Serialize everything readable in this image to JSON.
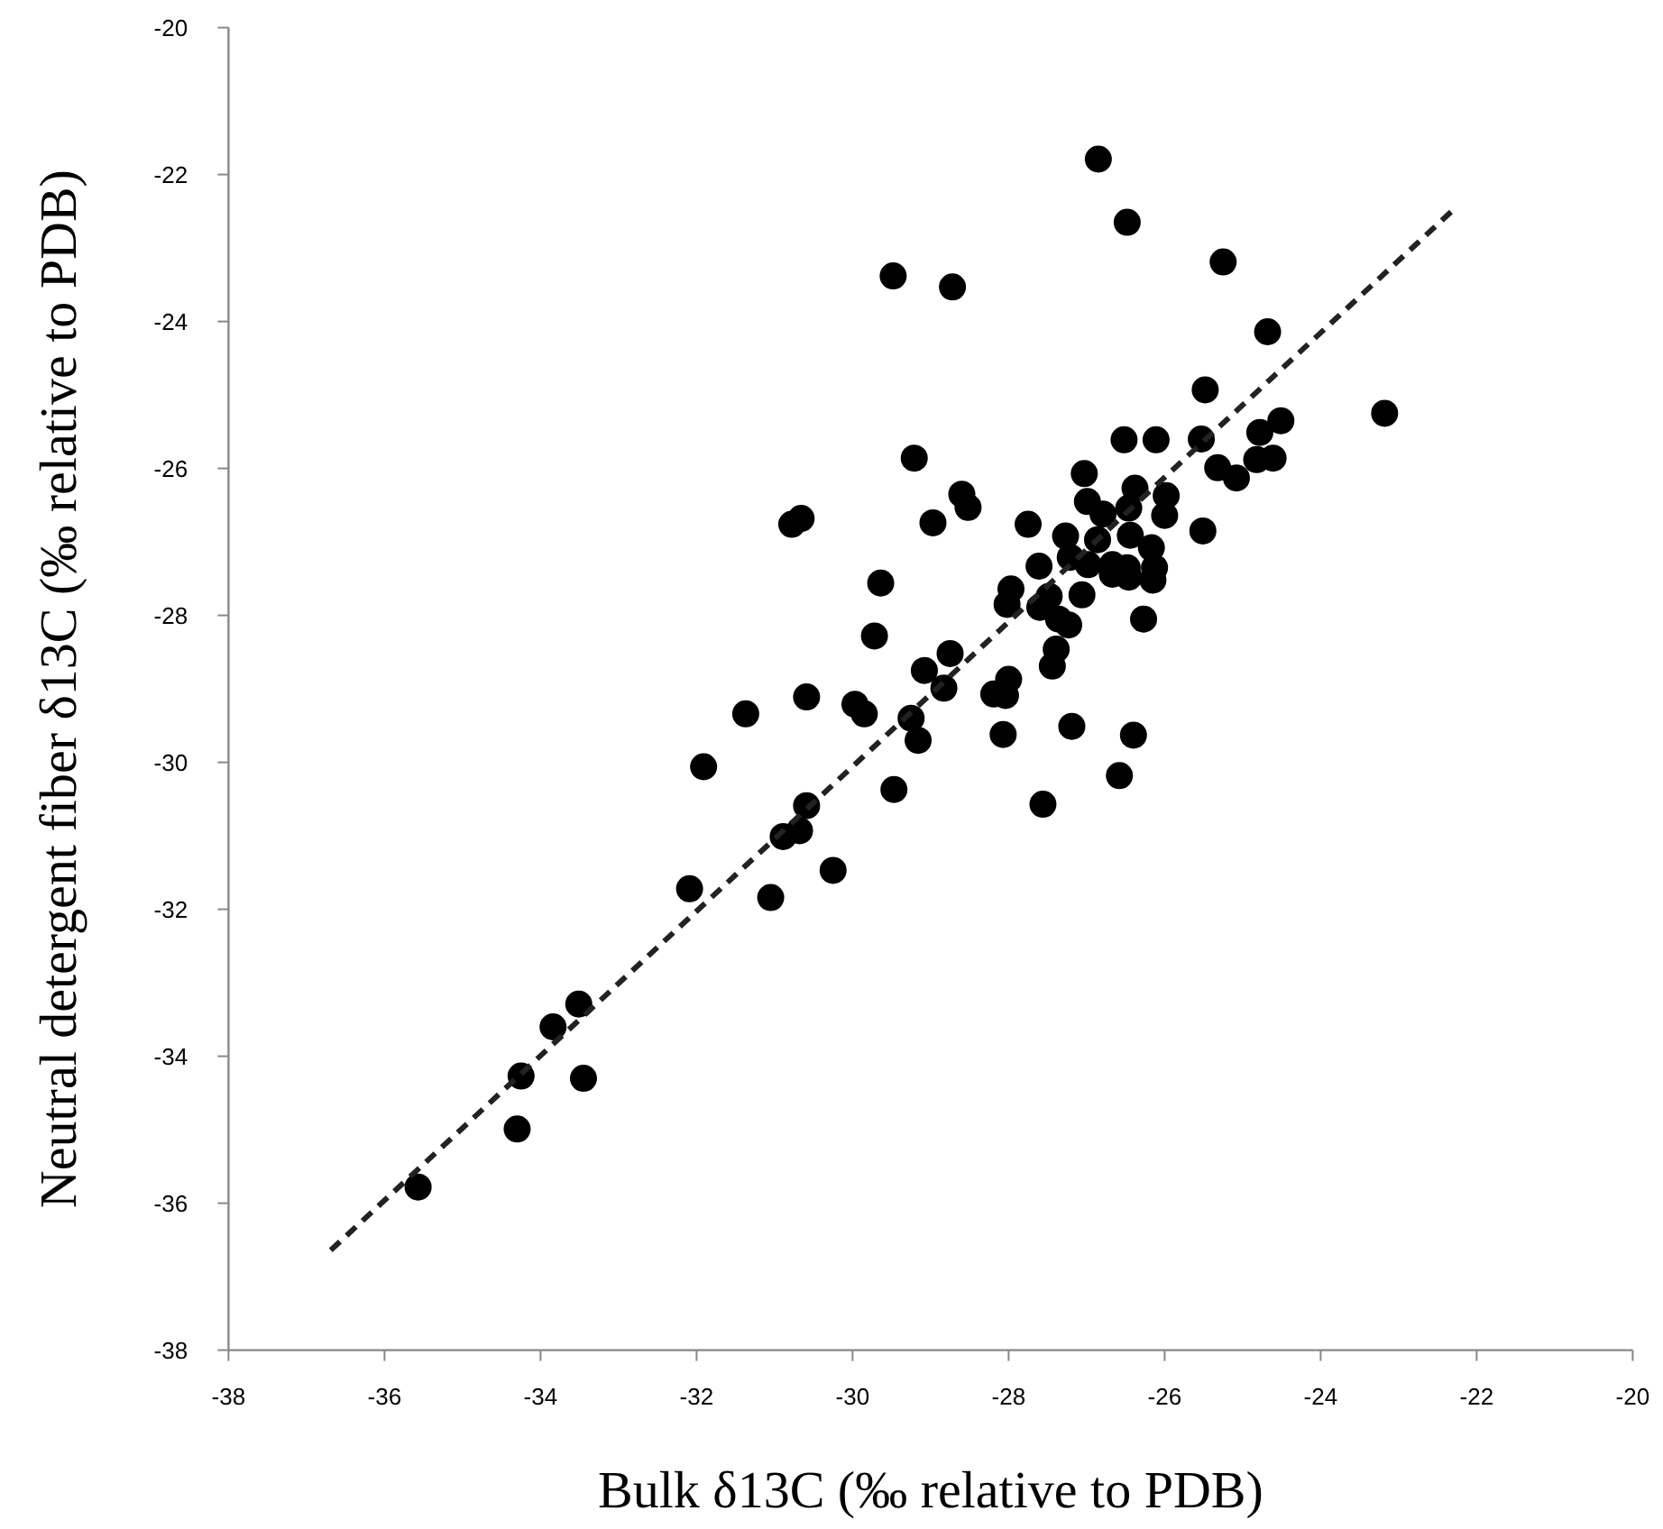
{
  "chart_data": {
    "type": "scatter",
    "xlabel": "Bulk δ13C (‰ relative to PDB)",
    "ylabel": "Neutral detergent fiber δ13C (‰ relative to PDB)",
    "xlim": [
      -38,
      -20
    ],
    "ylim": [
      -38,
      -20
    ],
    "xticks": [
      -38,
      -36,
      -34,
      -32,
      -30,
      -28,
      -26,
      -24,
      -22,
      -20
    ],
    "yticks": [
      -38,
      -36,
      -34,
      -32,
      -30,
      -28,
      -26,
      -24,
      -22,
      -20
    ],
    "grid": false,
    "series": [
      {
        "color": "#000000",
        "marker": "circle",
        "x": [
          -35.57,
          -34.25,
          -34.3,
          -33.84,
          -33.51,
          -33.45,
          -32.09,
          -31.05,
          -30.25,
          -26.52,
          -26.11,
          -29.21,
          -27.03,
          -28.6,
          -28.52,
          -30.78,
          -30.66,
          -28.97,
          -27.75,
          -26.99,
          -26.79,
          -26.38,
          -25.98,
          -26.0,
          -26.46,
          -27.27,
          -26.44,
          -26.86,
          -26.17,
          -27.21,
          -26.98,
          -27.61,
          -26.67,
          -26.48,
          -26.13,
          -26.67,
          -26.46,
          -26.15,
          -29.64,
          -27.97,
          -28.02,
          -27.48,
          -27.06,
          -27.6,
          -27.36,
          -27.23,
          -26.27,
          -29.72,
          -27.39,
          -27.44,
          -28.75,
          -29.08,
          -28.83,
          -30.59,
          -29.97,
          -29.85,
          -28.0,
          -28.19,
          -28.04,
          -31.37,
          -29.25,
          -29.16,
          -28.07,
          -27.19,
          -26.4,
          -31.91,
          -29.47,
          -27.56,
          -26.58,
          -30.59,
          -30.68,
          -30.89,
          -26.85,
          -26.48,
          -25.25,
          -24.68,
          -25.48,
          -23.18,
          -25.53,
          -24.51,
          -24.78,
          -25.32,
          -25.08,
          -24.82,
          -24.61,
          -25.51,
          -29.48,
          -28.72
        ],
        "values": [
          -35.78,
          -34.27,
          -34.99,
          -33.6,
          -33.29,
          -34.3,
          -31.72,
          -31.84,
          -31.47,
          -25.61,
          -25.61,
          -25.86,
          -26.07,
          -26.35,
          -26.53,
          -26.76,
          -26.68,
          -26.74,
          -26.76,
          -26.45,
          -26.62,
          -26.27,
          -26.37,
          -26.64,
          -26.54,
          -26.92,
          -26.91,
          -26.97,
          -27.08,
          -27.21,
          -27.31,
          -27.33,
          -27.31,
          -27.35,
          -27.35,
          -27.44,
          -27.48,
          -27.52,
          -27.56,
          -27.64,
          -27.85,
          -27.74,
          -27.72,
          -27.89,
          -28.05,
          -28.13,
          -28.05,
          -28.28,
          -28.46,
          -28.69,
          -28.52,
          -28.75,
          -28.99,
          -29.11,
          -29.21,
          -29.34,
          -28.87,
          -29.07,
          -29.09,
          -29.34,
          -29.4,
          -29.7,
          -29.62,
          -29.51,
          -29.63,
          -30.06,
          -30.37,
          -30.57,
          -30.18,
          -30.59,
          -30.93,
          -31.01,
          -21.79,
          -22.65,
          -23.19,
          -24.14,
          -24.93,
          -25.25,
          -25.6,
          -25.35,
          -25.51,
          -25.99,
          -26.13,
          -25.88,
          -25.86,
          -26.85,
          -23.38,
          -23.53
        ]
      },
      {
        "type": "line",
        "color": "#222222",
        "line_style": "dashed",
        "x": [
          -36.69,
          -22.32
        ],
        "values": [
          -36.64,
          -22.5
        ]
      }
    ]
  }
}
